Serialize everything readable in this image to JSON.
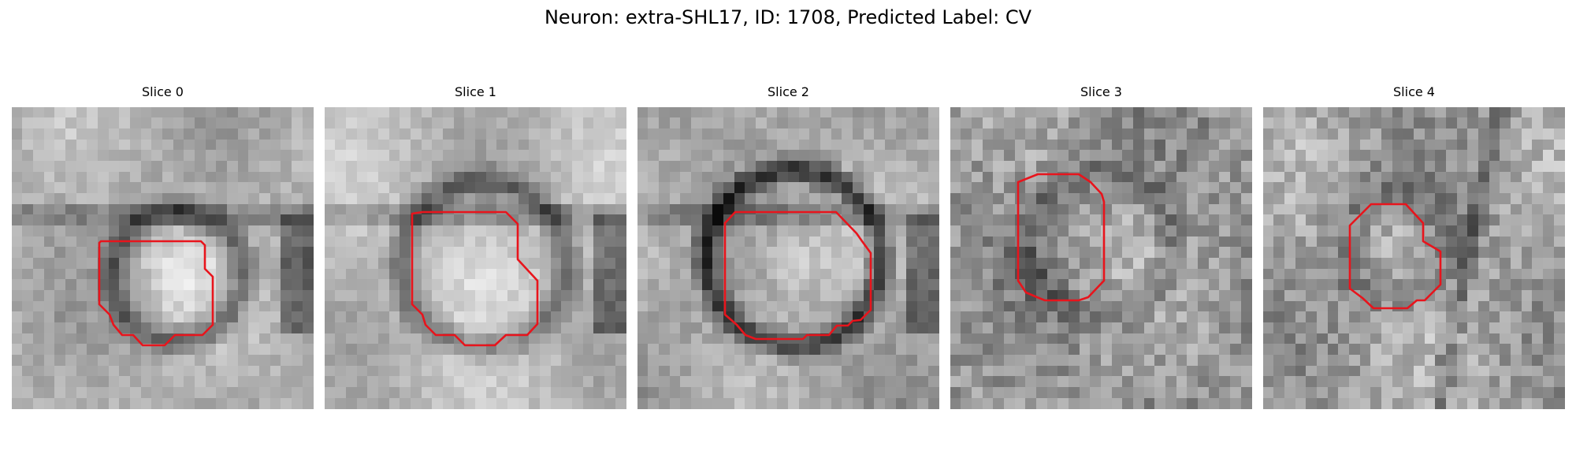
{
  "figure": {
    "title": "Neuron: extra-SHL17, ID: 1708, Predicted Label: CV",
    "contour_color": "#e8141c",
    "colormap": "gray"
  },
  "panels": [
    {
      "title": "Slice 0",
      "image": "grayscale-microscopy-slice",
      "overlay": "segmentation-contour"
    },
    {
      "title": "Slice 1",
      "image": "grayscale-microscopy-slice",
      "overlay": "segmentation-contour"
    },
    {
      "title": "Slice 2",
      "image": "grayscale-microscopy-slice",
      "overlay": "segmentation-contour"
    },
    {
      "title": "Slice 3",
      "image": "grayscale-microscopy-slice",
      "overlay": "segmentation-contour"
    },
    {
      "title": "Slice 4",
      "image": "grayscale-microscopy-slice",
      "overlay": "segmentation-contour"
    }
  ]
}
